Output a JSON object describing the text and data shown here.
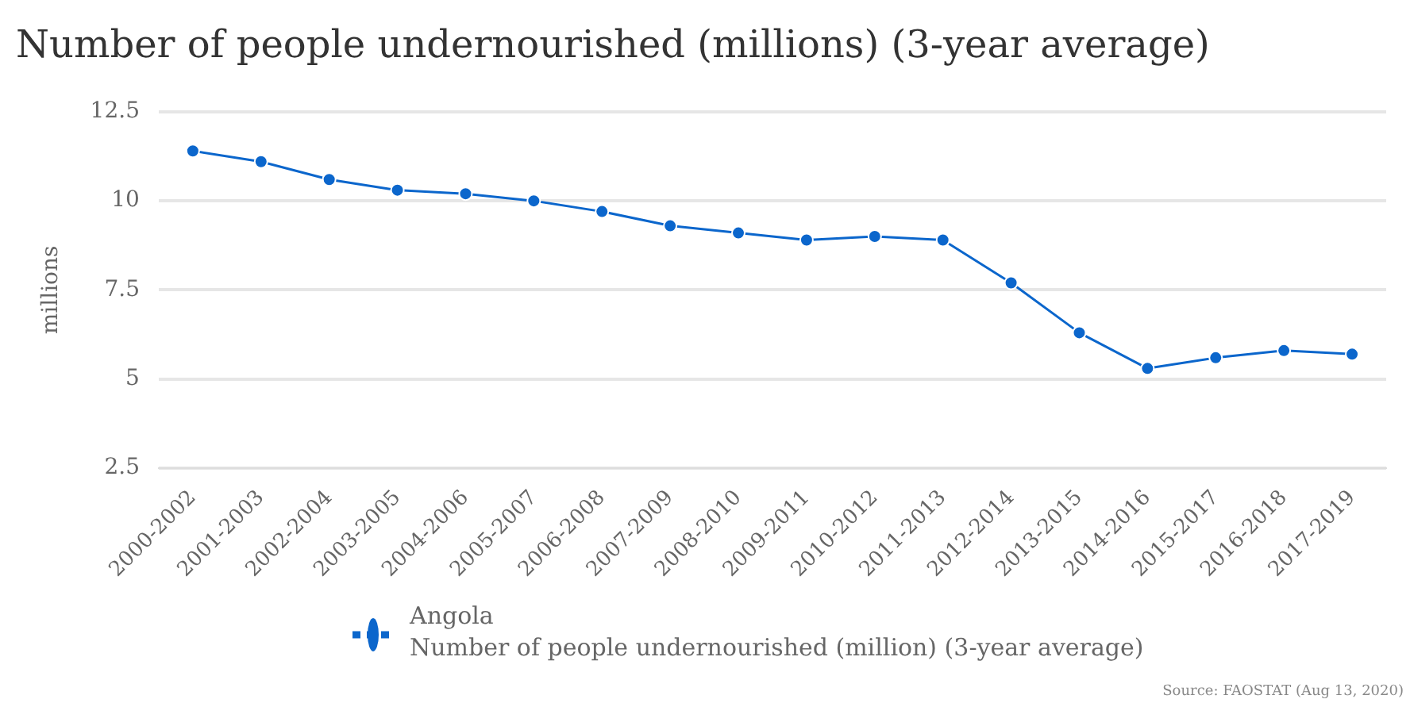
{
  "chart_data": {
    "type": "line",
    "title": "Number of people undernourished (millions) (3-year average)",
    "ylabel": "millions",
    "categories": [
      "2000-2002",
      "2001-2003",
      "2002-2004",
      "2003-2005",
      "2004-2006",
      "2005-2007",
      "2006-2008",
      "2007-2009",
      "2008-2010",
      "2009-2011",
      "2010-2012",
      "2011-2013",
      "2012-2014",
      "2013-2015",
      "2014-2016",
      "2015-2017",
      "2016-2018",
      "2017-2019"
    ],
    "series": [
      {
        "name": "Angola",
        "color": "#0b66cc",
        "values": [
          11.4,
          11.1,
          10.6,
          10.3,
          10.2,
          10.0,
          9.7,
          9.3,
          9.1,
          8.9,
          9.0,
          8.9,
          7.7,
          6.3,
          5.3,
          5.6,
          5.8,
          5.7
        ]
      }
    ],
    "ylim": [
      2.5,
      12.5
    ],
    "yticks": [
      2.5,
      5,
      7.5,
      10,
      12.5
    ],
    "grid": "y",
    "legend": "bottom",
    "marker": "circle",
    "line_style": "solid",
    "annotations": [
      "Number of people undernourished (million) (3-year average)",
      "Source: FAOSTAT (Aug 13, 2020)"
    ]
  }
}
